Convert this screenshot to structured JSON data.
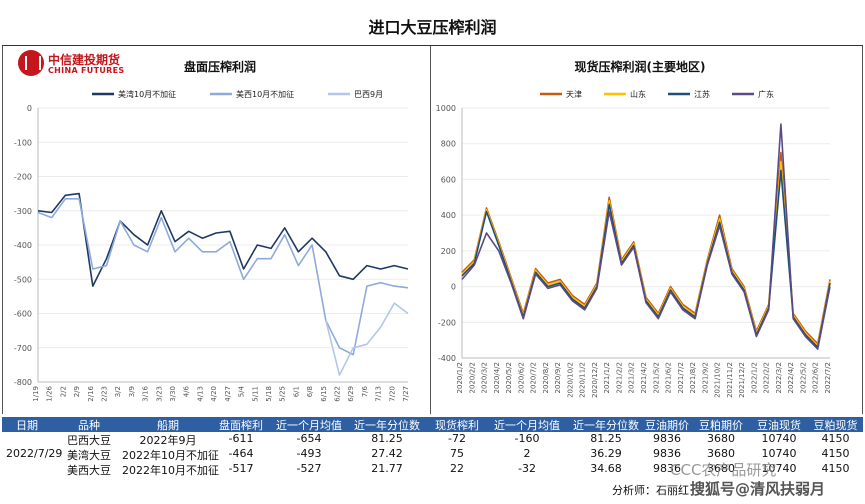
{
  "page_title": "进口大豆压榨利润",
  "logo": {
    "cn": "中信建投期货",
    "en": "CHINA FUTURES"
  },
  "chart_data": [
    {
      "type": "line",
      "title": "盘面压榨利润",
      "ylim": [
        -800,
        0
      ],
      "yticks": [
        0,
        -100,
        -200,
        -300,
        -400,
        -500,
        -600,
        -700,
        -800
      ],
      "categories": [
        "1/19",
        "1/26",
        "2/2",
        "2/9",
        "2/16",
        "2/23",
        "3/2",
        "3/9",
        "3/16",
        "3/23",
        "3/30",
        "4/6",
        "4/13",
        "4/20",
        "4/27",
        "5/4",
        "5/11",
        "5/18",
        "5/25",
        "6/1",
        "6/8",
        "6/15",
        "6/22",
        "6/29",
        "7/6",
        "7/13",
        "7/20",
        "7/27"
      ],
      "series": [
        {
          "name": "美湾10月不加征",
          "color": "#1f3864",
          "values": [
            -300,
            -305,
            -255,
            -250,
            -520,
            -440,
            -330,
            -370,
            -400,
            -300,
            -390,
            -360,
            -380,
            -365,
            -360,
            -470,
            -400,
            -410,
            -350,
            -420,
            -380,
            -420,
            -490,
            -500,
            -460,
            -470,
            -460,
            -470
          ]
        },
        {
          "name": "美西10月不加征",
          "color": "#8eaadb",
          "values": [
            -305,
            -320,
            -265,
            -265,
            -470,
            -460,
            -330,
            -400,
            -420,
            -320,
            -420,
            -380,
            -420,
            -420,
            -390,
            -500,
            -440,
            -440,
            -370,
            -460,
            -400,
            -620,
            -700,
            -720,
            -520,
            -510,
            -520,
            -525
          ]
        },
        {
          "name": "巴西9月",
          "color": "#b4c7e7",
          "values": [
            null,
            null,
            null,
            null,
            null,
            null,
            null,
            null,
            null,
            null,
            null,
            null,
            null,
            null,
            null,
            null,
            null,
            null,
            null,
            null,
            null,
            -620,
            -780,
            -700,
            -690,
            -640,
            -570,
            -600
          ]
        }
      ]
    },
    {
      "type": "line",
      "title": "现货压榨利润(主要地区)",
      "ylim": [
        -400,
        1000
      ],
      "yticks": [
        1000,
        800,
        600,
        400,
        200,
        0,
        -200,
        -400
      ],
      "categories": [
        "2020/1/2",
        "2020/2/2",
        "2020/3/2",
        "2020/4/2",
        "2020/5/2",
        "2020/6/2",
        "2020/7/2",
        "2020/8/2",
        "2020/9/2",
        "2020/10/2",
        "2020/11/2",
        "2020/12/2",
        "2021/1/2",
        "2021/2/2",
        "2021/3/2",
        "2021/4/2",
        "2021/5/2",
        "2021/6/2",
        "2021/7/2",
        "2021/8/2",
        "2021/9/2",
        "2021/10/2",
        "2021/11/2",
        "2021/12/2",
        "2022/1/2",
        "2022/2/2",
        "2022/3/2",
        "2022/4/2",
        "2022/5/2",
        "2022/6/2",
        "2022/7/2"
      ],
      "series": [
        {
          "name": "天津",
          "color": "#c55a11",
          "values": [
            80,
            150,
            440,
            250,
            50,
            -150,
            100,
            20,
            40,
            -50,
            -100,
            20,
            500,
            150,
            250,
            -60,
            -150,
            0,
            -100,
            -150,
            150,
            400,
            100,
            0,
            -250,
            -100,
            750,
            -150,
            -250,
            -320,
            40
          ]
        },
        {
          "name": "山东",
          "color": "#ffc000",
          "values": [
            70,
            140,
            430,
            240,
            40,
            -160,
            90,
            10,
            30,
            -60,
            -110,
            10,
            480,
            140,
            240,
            -70,
            -160,
            -10,
            -110,
            -160,
            140,
            380,
            90,
            -10,
            -260,
            -110,
            700,
            -160,
            -260,
            -330,
            30
          ]
        },
        {
          "name": "江苏",
          "color": "#1f4e79",
          "values": [
            60,
            130,
            420,
            230,
            30,
            -170,
            80,
            0,
            20,
            -70,
            -120,
            0,
            460,
            130,
            230,
            -80,
            -170,
            -20,
            -120,
            -170,
            130,
            360,
            80,
            -20,
            -270,
            -120,
            650,
            -170,
            -270,
            -340,
            20
          ]
        },
        {
          "name": "广东",
          "color": "#5b4a86",
          "values": [
            40,
            120,
            300,
            200,
            20,
            -180,
            70,
            -10,
            10,
            -80,
            -130,
            -10,
            420,
            120,
            220,
            -90,
            -180,
            -30,
            -130,
            -180,
            120,
            340,
            70,
            -30,
            -280,
            -130,
            910,
            -180,
            -280,
            -350,
            0
          ]
        }
      ]
    }
  ],
  "table": {
    "headers": [
      "日期",
      "品种",
      "船期",
      "盘面榨利",
      "近一个月均值",
      "近一年分位数",
      "现货榨利",
      "近一个月均值",
      "近一年分位数",
      "豆油期价",
      "豆粕期价",
      "豆油现货",
      "豆粕现货"
    ],
    "date": "2022/7/29",
    "rows": [
      [
        "巴西大豆",
        "2022年9月",
        "-611",
        "-654",
        "81.25",
        "-72",
        "-160",
        "81.25",
        "9836",
        "3680",
        "10740",
        "4150"
      ],
      [
        "美湾大豆",
        "2022年10月不加征",
        "-464",
        "-493",
        "27.42",
        "75",
        "2",
        "36.29",
        "9836",
        "3680",
        "10740",
        "4150"
      ],
      [
        "美西大豆",
        "2022年10月不加征",
        "-517",
        "-527",
        "21.77",
        "22",
        "-32",
        "34.68",
        "9836",
        "3680",
        "10740",
        "4150"
      ]
    ]
  },
  "analyst": "分析师：石丽红",
  "watermark": {
    "line1": "CCC农产品研究",
    "line2": "搜狐号@清风扶弱月"
  }
}
